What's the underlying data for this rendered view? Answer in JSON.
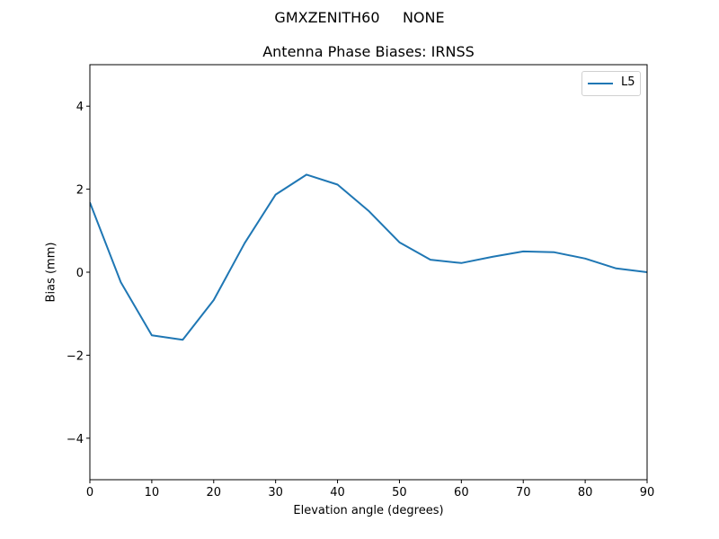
{
  "suptitle": "GMXZENITH60     NONE",
  "chart_data": {
    "type": "line",
    "title": "Antenna Phase Biases: IRNSS",
    "xlabel": "Elevation angle (degrees)",
    "ylabel": "Bias (mm)",
    "xlim": [
      0,
      90
    ],
    "ylim": [
      -5,
      5
    ],
    "xticks": [
      0,
      10,
      20,
      30,
      40,
      50,
      60,
      70,
      80,
      90
    ],
    "yticks": [
      -4,
      -2,
      0,
      2,
      4
    ],
    "ytick_labels": [
      "−4",
      "−2",
      "0",
      "2",
      "4"
    ],
    "grid": false,
    "legend_position": "upper right",
    "x": [
      0,
      5,
      10,
      15,
      20,
      25,
      30,
      35,
      40,
      45,
      50,
      55,
      60,
      65,
      70,
      75,
      80,
      85,
      90
    ],
    "series": [
      {
        "name": "L5",
        "color": "#1f77b4",
        "values": [
          1.68,
          -0.24,
          -1.52,
          -1.63,
          -0.67,
          0.7,
          1.87,
          2.35,
          2.11,
          1.48,
          0.72,
          0.3,
          0.22,
          0.37,
          0.5,
          0.48,
          0.33,
          0.09,
          0.0
        ]
      }
    ]
  }
}
